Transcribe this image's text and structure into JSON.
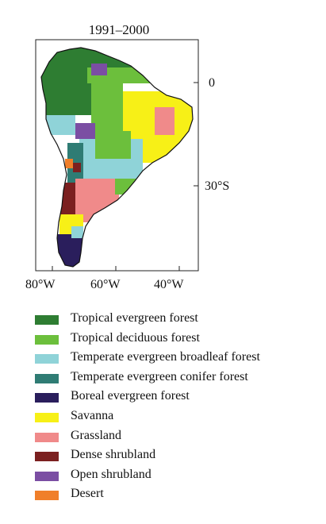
{
  "title": "1991–2000",
  "lon_labels": [
    "80°W",
    "60°W",
    "40°W"
  ],
  "lat_labels": [
    "0",
    "30°S"
  ],
  "legend": [
    {
      "label": "Tropical evergreen forest",
      "color": "#2e7d32"
    },
    {
      "label": "Tropical deciduous forest",
      "color": "#6cbf3c"
    },
    {
      "label": "Temperate evergreen broadleaf forest",
      "color": "#8fd3d8"
    },
    {
      "label": "Temperate evergreen conifer forest",
      "color": "#2f7c74"
    },
    {
      "label": "Boreal evergreen forest",
      "color": "#2a1e5c"
    },
    {
      "label": "Savanna",
      "color": "#f7f017"
    },
    {
      "label": "Grassland",
      "color": "#f08a8a"
    },
    {
      "label": "Dense shrubland",
      "color": "#7b2020"
    },
    {
      "label": "Open shrubland",
      "color": "#7b4ea3"
    },
    {
      "label": "Desert",
      "color": "#f07f2a"
    }
  ]
}
